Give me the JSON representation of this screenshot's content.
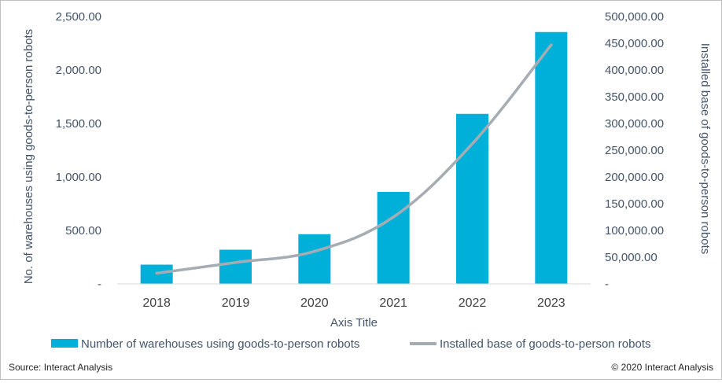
{
  "chart_data": {
    "type": "bar",
    "categories": [
      "2018",
      "2019",
      "2020",
      "2021",
      "2022",
      "2023"
    ],
    "series": [
      {
        "name": "Number of warehouses using goods-to-person robots",
        "type": "bar",
        "axis": "left",
        "color": "#00b0d8",
        "values": [
          180,
          320,
          465,
          860,
          1590,
          2355
        ]
      },
      {
        "name": "Installed base of goods-to-person robots",
        "type": "line",
        "axis": "right",
        "color": "#a6acb3",
        "values": [
          20000,
          40000,
          61000,
          125000,
          262000,
          447000
        ]
      }
    ],
    "xlabel": "Axis Title",
    "ylabel": "No. of warehouses using goods-to-person robots",
    "y2label": "Installed base of goods-to-person robots",
    "ylim": [
      0,
      2500
    ],
    "y2lim": [
      0,
      500000
    ],
    "yticks": [
      "-",
      "500.00",
      "1,000.00",
      "1,500.00",
      "2,000.00",
      "2,500.00"
    ],
    "y2ticks": [
      "-",
      "50,000.00",
      "100,000.00",
      "150,000.00",
      "200,000.00",
      "250,000.00",
      "300,000.00",
      "350,000.00",
      "400,000.00",
      "450,000.00",
      "500,000.00"
    ],
    "legend_position": "bottom",
    "grid": false
  },
  "footer": {
    "source": "Source: Interact Analysis",
    "copyright": "© 2020 Interact Analysis"
  }
}
